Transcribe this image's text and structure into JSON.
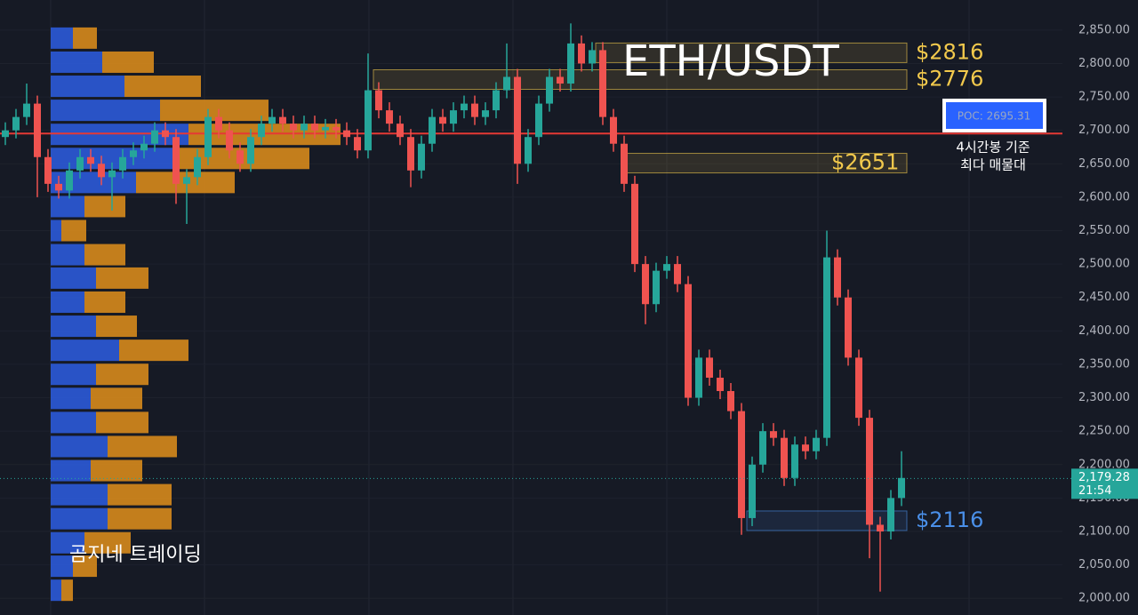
{
  "chart_data": {
    "type": "candlestick",
    "title": "ETH/USDT",
    "up_color": "#26a69a",
    "down_color": "#ef5350",
    "open": [
      2690,
      2700,
      2720,
      2740,
      2660,
      2620,
      2610,
      2640,
      2660,
      2650,
      2630,
      2640,
      2660,
      2670,
      2680,
      2700,
      2690,
      2620,
      2630,
      2660,
      2720,
      2700,
      2670,
      2650,
      2690,
      2710,
      2720,
      2710,
      2700,
      2710,
      2700,
      2705,
      2700,
      2690,
      2670,
      2760,
      2730,
      2710,
      2690,
      2640,
      2680,
      2720,
      2710,
      2730,
      2740,
      2720,
      2730,
      2760,
      2780,
      2650,
      2690,
      2740,
      2780,
      2770,
      2830,
      2800,
      2820,
      2720,
      2680,
      2620,
      2500,
      2440,
      2490,
      2500,
      2470,
      2300,
      2360,
      2330,
      2310,
      2280,
      2120,
      2200,
      2250,
      2240,
      2180,
      2230,
      2220,
      2240,
      2510,
      2450,
      2360,
      2270,
      2110,
      2100,
      2150
    ],
    "high": [
      2712,
      2732,
      2770,
      2752,
      2672,
      2632,
      2652,
      2672,
      2672,
      2662,
      2652,
      2672,
      2682,
      2692,
      2712,
      2712,
      2702,
      2642,
      2672,
      2732,
      2732,
      2712,
      2682,
      2702,
      2722,
      2732,
      2732,
      2722,
      2722,
      2722,
      2717,
      2717,
      2712,
      2702,
      2815,
      2772,
      2742,
      2722,
      2702,
      2692,
      2732,
      2732,
      2742,
      2752,
      2752,
      2742,
      2772,
      2830,
      2792,
      2702,
      2752,
      2792,
      2792,
      2860,
      2842,
      2832,
      2832,
      2732,
      2692,
      2632,
      2512,
      2502,
      2512,
      2512,
      2482,
      2372,
      2372,
      2342,
      2322,
      2292,
      2212,
      2262,
      2262,
      2252,
      2242,
      2242,
      2252,
      2550,
      2522,
      2462,
      2372,
      2282,
      2122,
      2162,
      2220
    ],
    "low": [
      2678,
      2688,
      2708,
      2600,
      2608,
      2598,
      2598,
      2628,
      2638,
      2618,
      2580,
      2628,
      2648,
      2658,
      2668,
      2678,
      2590,
      2560,
      2618,
      2648,
      2688,
      2658,
      2638,
      2638,
      2678,
      2698,
      2698,
      2688,
      2688,
      2688,
      2688,
      2688,
      2678,
      2658,
      2658,
      2718,
      2698,
      2678,
      2615,
      2628,
      2668,
      2698,
      2698,
      2718,
      2708,
      2708,
      2718,
      2748,
      2620,
      2638,
      2678,
      2728,
      2758,
      2758,
      2788,
      2788,
      2708,
      2668,
      2608,
      2488,
      2410,
      2428,
      2478,
      2458,
      2288,
      2288,
      2318,
      2298,
      2268,
      2095,
      2108,
      2188,
      2228,
      2168,
      2168,
      2208,
      2208,
      2228,
      2438,
      2348,
      2258,
      2060,
      2010,
      2088,
      2138
    ],
    "close": [
      2700,
      2720,
      2740,
      2660,
      2620,
      2610,
      2640,
      2660,
      2650,
      2630,
      2640,
      2660,
      2670,
      2680,
      2700,
      2690,
      2620,
      2630,
      2660,
      2720,
      2700,
      2670,
      2650,
      2690,
      2710,
      2720,
      2710,
      2700,
      2710,
      2700,
      2705,
      2700,
      2690,
      2670,
      2760,
      2730,
      2710,
      2690,
      2640,
      2680,
      2720,
      2710,
      2730,
      2740,
      2720,
      2730,
      2760,
      2780,
      2650,
      2690,
      2740,
      2780,
      2770,
      2830,
      2800,
      2820,
      2720,
      2680,
      2620,
      2500,
      2440,
      2490,
      2500,
      2470,
      2300,
      2360,
      2330,
      2310,
      2280,
      2120,
      2200,
      2250,
      2240,
      2180,
      2230,
      2220,
      2240,
      2510,
      2450,
      2360,
      2270,
      2110,
      2100,
      2150,
      2180
    ],
    "ylim": [
      1975,
      2895
    ],
    "yticks": [
      {
        "value": 2000,
        "label": "2,000.00"
      },
      {
        "value": 2050,
        "label": "2,050.00"
      },
      {
        "value": 2100,
        "label": "2,100.00"
      },
      {
        "value": 2150,
        "label": "2,150.00"
      },
      {
        "value": 2200,
        "label": "2,200.00"
      },
      {
        "value": 2250,
        "label": "2,250.00"
      },
      {
        "value": 2300,
        "label": "2,300.00"
      },
      {
        "value": 2350,
        "label": "2,350.00"
      },
      {
        "value": 2400,
        "label": "2,400.00"
      },
      {
        "value": 2450,
        "label": "2,450.00"
      },
      {
        "value": 2500,
        "label": "2,500.00"
      },
      {
        "value": 2550,
        "label": "2,550.00"
      },
      {
        "value": 2600,
        "label": "2,600.00"
      },
      {
        "value": 2650,
        "label": "2,650.00"
      },
      {
        "value": 2700,
        "label": "2,700.00"
      },
      {
        "value": 2750,
        "label": "2,750.00"
      },
      {
        "value": 2800,
        "label": "2,800.00"
      },
      {
        "value": 2850,
        "label": "2,850.00"
      }
    ],
    "price_levels": [
      {
        "label": "$2816",
        "value": 2816,
        "color": "#f2c94c"
      },
      {
        "label": "$2776",
        "value": 2776,
        "color": "#f2c94c"
      },
      {
        "label": "$2651",
        "value": 2651,
        "color": "#f2c94c"
      },
      {
        "label": "$2116",
        "value": 2116,
        "color": "#4a8fe8"
      }
    ],
    "poc": {
      "label": "POC: 2695.31",
      "value": 2695.31,
      "color": "#e53935"
    },
    "notes": [
      "4시간봉 기준",
      "최다 매물대"
    ],
    "watermark": "곰지네 트레이딩",
    "last_price": {
      "value": 2179.28,
      "label": "2,179.28",
      "countdown": "21:54",
      "color": "#26a69a"
    },
    "volume_profile": {
      "prices": [
        2838,
        2802,
        2766,
        2730,
        2694,
        2658,
        2622,
        2586,
        2550,
        2514,
        2479,
        2443,
        2407,
        2371,
        2335,
        2299,
        2263,
        2227,
        2191,
        2155,
        2119,
        2083,
        2048,
        2012
      ],
      "buy": [
        25,
        58,
        83,
        123,
        155,
        141,
        96,
        38,
        12,
        38,
        51,
        38,
        51,
        77,
        51,
        45,
        51,
        64,
        45,
        64,
        64,
        38,
        25,
        12
      ],
      "sell": [
        27,
        58,
        86,
        122,
        171,
        150,
        111,
        46,
        28,
        46,
        59,
        46,
        46,
        78,
        59,
        58,
        59,
        78,
        58,
        72,
        72,
        52,
        27,
        13
      ],
      "buy_color": "#2b5ad8",
      "sell_color": "#d68a1c"
    }
  }
}
